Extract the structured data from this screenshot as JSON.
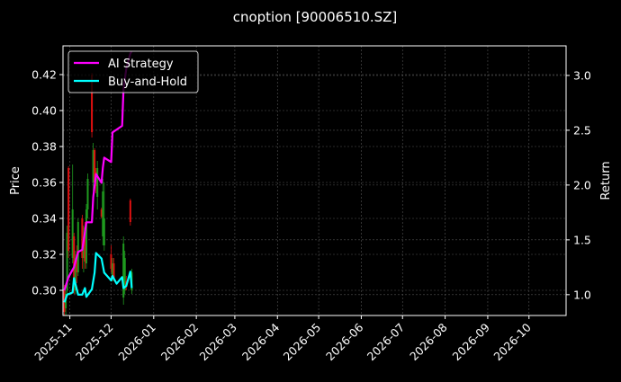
{
  "chart_data": {
    "type": "line",
    "title": "cnoption [90006510.SZ]",
    "ylabel": "Price",
    "y2label": "Return",
    "ylim": [
      0.286,
      0.436
    ],
    "y2lim": [
      0.81,
      3.27
    ],
    "xlim": [
      "2025-10-27",
      "2026-10-28"
    ],
    "yticks": [
      "0.30",
      "0.32",
      "0.34",
      "0.36",
      "0.38",
      "0.40",
      "0.42"
    ],
    "y2ticks": [
      "1.0",
      "1.5",
      "2.0",
      "2.5",
      "3.0"
    ],
    "xticks": [
      "2025-11",
      "2025-12",
      "2026-01",
      "2026-02",
      "2026-03",
      "2026-04",
      "2026-05",
      "2026-06",
      "2026-07",
      "2026-08",
      "2026-09",
      "2026-10"
    ],
    "grid": true,
    "legend_position": "top-left",
    "colors": {
      "up": "#1f9a1f",
      "down": "#e01010",
      "ai": "#ff00ff",
      "bh": "#00ffff",
      "grid": "#555555"
    },
    "candles": [
      {
        "date": "2025-10-28",
        "o": 0.3,
        "h": 0.303,
        "l": 0.286,
        "c": 0.288
      },
      {
        "date": "2025-10-29",
        "o": 0.29,
        "h": 0.3,
        "l": 0.286,
        "c": 0.298
      },
      {
        "date": "2025-10-30",
        "o": 0.3,
        "h": 0.336,
        "l": 0.298,
        "c": 0.332
      },
      {
        "date": "2025-10-31",
        "o": 0.368,
        "h": 0.369,
        "l": 0.318,
        "c": 0.322
      },
      {
        "date": "2025-11-03",
        "o": 0.318,
        "h": 0.37,
        "l": 0.315,
        "c": 0.345
      },
      {
        "date": "2025-11-04",
        "o": 0.33,
        "h": 0.332,
        "l": 0.298,
        "c": 0.302
      },
      {
        "date": "2025-11-05",
        "o": 0.3,
        "h": 0.322,
        "l": 0.298,
        "c": 0.318
      },
      {
        "date": "2025-11-06",
        "o": 0.32,
        "h": 0.325,
        "l": 0.304,
        "c": 0.31
      },
      {
        "date": "2025-11-07",
        "o": 0.31,
        "h": 0.34,
        "l": 0.308,
        "c": 0.338
      },
      {
        "date": "2025-11-10",
        "o": 0.34,
        "h": 0.342,
        "l": 0.312,
        "c": 0.318
      },
      {
        "date": "2025-11-11",
        "o": 0.318,
        "h": 0.336,
        "l": 0.31,
        "c": 0.33
      },
      {
        "date": "2025-11-12",
        "o": 0.335,
        "h": 0.338,
        "l": 0.312,
        "c": 0.316
      },
      {
        "date": "2025-11-13",
        "o": 0.315,
        "h": 0.348,
        "l": 0.312,
        "c": 0.345
      },
      {
        "date": "2025-11-14",
        "o": 0.345,
        "h": 0.365,
        "l": 0.34,
        "c": 0.362
      },
      {
        "date": "2025-11-17",
        "o": 0.42,
        "h": 0.421,
        "l": 0.385,
        "c": 0.388
      },
      {
        "date": "2025-11-18",
        "o": 0.36,
        "h": 0.382,
        "l": 0.355,
        "c": 0.378
      },
      {
        "date": "2025-11-19",
        "o": 0.378,
        "h": 0.379,
        "l": 0.355,
        "c": 0.36
      },
      {
        "date": "2025-11-20",
        "o": 0.366,
        "h": 0.368,
        "l": 0.354,
        "c": 0.358
      },
      {
        "date": "2025-11-21",
        "o": 0.352,
        "h": 0.372,
        "l": 0.345,
        "c": 0.368
      },
      {
        "date": "2025-11-24",
        "o": 0.345,
        "h": 0.346,
        "l": 0.34,
        "c": 0.341
      },
      {
        "date": "2025-11-25",
        "o": 0.33,
        "h": 0.362,
        "l": 0.325,
        "c": 0.355
      },
      {
        "date": "2025-11-26",
        "o": 0.325,
        "h": 0.36,
        "l": 0.322,
        "c": 0.34
      },
      {
        "date": "2025-12-01",
        "o": 0.32,
        "h": 0.325,
        "l": 0.31,
        "c": 0.312
      },
      {
        "date": "2025-12-02",
        "o": 0.308,
        "h": 0.318,
        "l": 0.305,
        "c": 0.315
      },
      {
        "date": "2025-12-03",
        "o": 0.315,
        "h": 0.318,
        "l": 0.305,
        "c": 0.306
      },
      {
        "date": "2025-12-10",
        "o": 0.296,
        "h": 0.33,
        "l": 0.292,
        "c": 0.326
      },
      {
        "date": "2025-12-11",
        "o": 0.3,
        "h": 0.322,
        "l": 0.298,
        "c": 0.318
      },
      {
        "date": "2025-12-12",
        "o": 0.305,
        "h": 0.308,
        "l": 0.3,
        "c": 0.302
      },
      {
        "date": "2025-12-15",
        "o": 0.35,
        "h": 0.351,
        "l": 0.336,
        "c": 0.338
      },
      {
        "date": "2025-12-16",
        "o": 0.3,
        "h": 0.312,
        "l": 0.298,
        "c": 0.31
      }
    ],
    "series": [
      {
        "name": "AI Strategy",
        "axis": "right",
        "x": [
          "2025-10-28",
          "2025-10-31",
          "2025-11-04",
          "2025-11-07",
          "2025-11-10",
          "2025-11-13",
          "2025-11-17",
          "2025-11-18",
          "2025-11-20",
          "2025-11-24",
          "2025-11-25",
          "2025-11-26",
          "2025-12-01",
          "2025-12-02",
          "2025-12-09",
          "2025-12-10",
          "2025-12-12",
          "2025-12-15",
          "2025-12-16"
        ],
        "values": [
          1.04,
          1.16,
          1.25,
          1.39,
          1.41,
          1.66,
          1.66,
          1.89,
          2.1,
          2.02,
          2.16,
          2.25,
          2.21,
          2.48,
          2.54,
          2.87,
          3.06,
          3.2,
          3.22
        ]
      },
      {
        "name": "Buy-and-Hold",
        "axis": "right",
        "x": [
          "2025-10-28",
          "2025-10-30",
          "2025-11-03",
          "2025-11-04",
          "2025-11-07",
          "2025-11-10",
          "2025-11-12",
          "2025-11-13",
          "2025-11-17",
          "2025-11-19",
          "2025-11-20",
          "2025-11-24",
          "2025-11-26",
          "2025-12-01",
          "2025-12-02",
          "2025-12-05",
          "2025-12-09",
          "2025-12-10",
          "2025-12-12",
          "2025-12-15",
          "2025-12-16"
        ],
        "values": [
          0.93,
          1.0,
          1.02,
          1.15,
          1.0,
          1.0,
          1.06,
          0.98,
          1.05,
          1.2,
          1.38,
          1.33,
          1.2,
          1.13,
          1.17,
          1.1,
          1.16,
          1.06,
          1.08,
          1.21,
          1.06
        ]
      }
    ]
  }
}
